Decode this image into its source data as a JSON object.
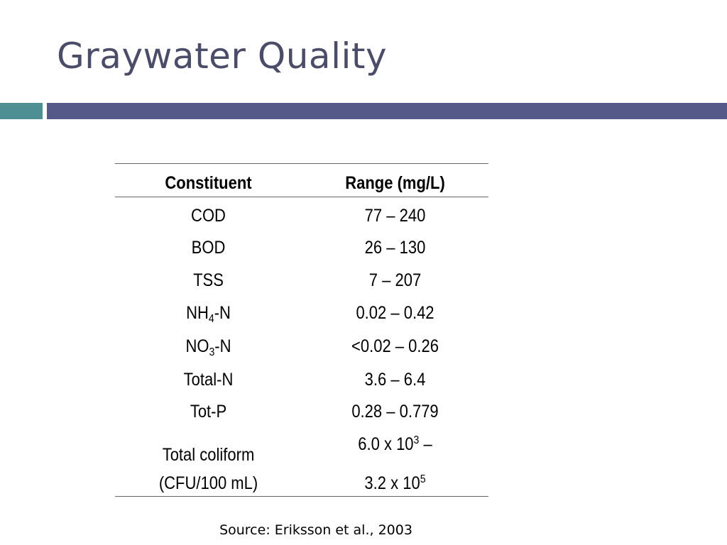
{
  "header": {
    "title": "Graywater Quality"
  },
  "table": {
    "columns": [
      "Constituent",
      "Range (mg/L)"
    ],
    "rows": [
      [
        "COD",
        "77 – 240"
      ],
      [
        "BOD",
        "26 – 130"
      ],
      [
        "TSS",
        "7 – 207"
      ],
      [
        [
          "NH",
          "4",
          "-N"
        ],
        "0.02 – 0.42"
      ],
      [
        [
          "NO",
          "3",
          "-N"
        ],
        "<0.02 – 0.26"
      ],
      [
        "Total-N",
        "3.6 – 6.4"
      ],
      [
        "Tot-P",
        "0.28 – 0.779"
      ],
      [
        [
          "Total coliform",
          "(CFU/100 mL)"
        ],
        [
          "6.0 x 10",
          "3",
          " –",
          "3.2 x 10",
          "5"
        ]
      ]
    ]
  },
  "source": "Source: Eriksson et al., 2003"
}
